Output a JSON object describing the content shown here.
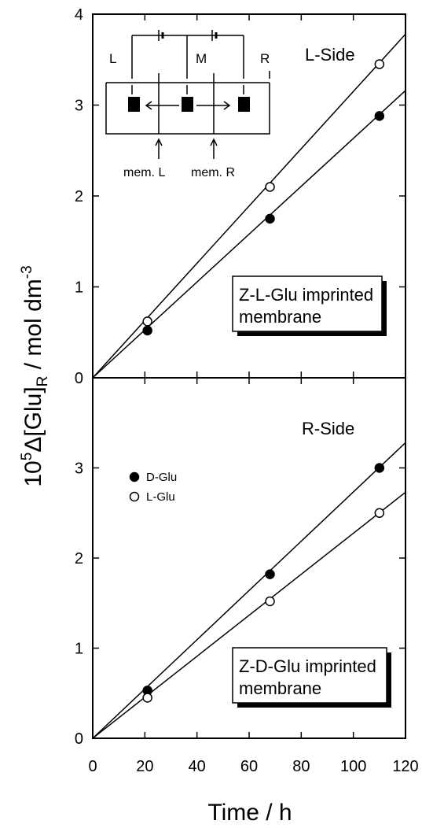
{
  "chart_data": [
    {
      "type": "scatter",
      "panel": "top",
      "corner_label": "L-Side",
      "box_label": [
        "Z-L-Glu imprinted",
        "membrane"
      ],
      "xlim": [
        0,
        120
      ],
      "ylim": [
        0,
        4
      ],
      "yticks": [
        0,
        1,
        2,
        3,
        4
      ],
      "series": [
        {
          "name": "D-Glu",
          "marker": "filled-circle",
          "x": [
            0,
            21,
            68,
            110
          ],
          "y": [
            0,
            0.52,
            1.75,
            2.88
          ],
          "fit_line_end": [
            120,
            3.16
          ]
        },
        {
          "name": "L-Glu",
          "marker": "open-circle",
          "x": [
            0,
            21,
            68,
            110
          ],
          "y": [
            0,
            0.62,
            2.1,
            3.45
          ],
          "fit_line_end": [
            120,
            3.78
          ]
        }
      ],
      "inset": {
        "compartments": [
          "L",
          "M",
          "R"
        ],
        "membranes": [
          "mem. L",
          "mem. R"
        ]
      }
    },
    {
      "type": "scatter",
      "panel": "bottom",
      "corner_label": "R-Side",
      "box_label": [
        "Z-D-Glu imprinted",
        "membrane"
      ],
      "xlim": [
        0,
        120
      ],
      "ylim": [
        0,
        4
      ],
      "yticks": [
        0,
        1,
        2,
        3
      ],
      "legend": [
        {
          "label": "D-Glu",
          "marker": "filled-circle"
        },
        {
          "label": "L-Glu",
          "marker": "open-circle"
        }
      ],
      "series": [
        {
          "name": "D-Glu",
          "marker": "filled-circle",
          "x": [
            0,
            21,
            68,
            110
          ],
          "y": [
            0,
            0.53,
            1.82,
            3.0
          ],
          "fit_line_end": [
            120,
            3.28
          ]
        },
        {
          "name": "L-Glu",
          "marker": "open-circle",
          "x": [
            0,
            21,
            68,
            110
          ],
          "y": [
            0,
            0.45,
            1.52,
            2.5
          ],
          "fit_line_end": [
            120,
            2.73
          ]
        }
      ]
    }
  ],
  "axes": {
    "xticks": [
      0,
      20,
      40,
      60,
      80,
      100,
      120
    ],
    "xlabel": "Time / h",
    "ylabel": {
      "pre": "10",
      "sup": "5",
      "mid": "Δ[Glu]",
      "sub": "R",
      "post": " / mol dm",
      "sup2": "-3"
    }
  }
}
